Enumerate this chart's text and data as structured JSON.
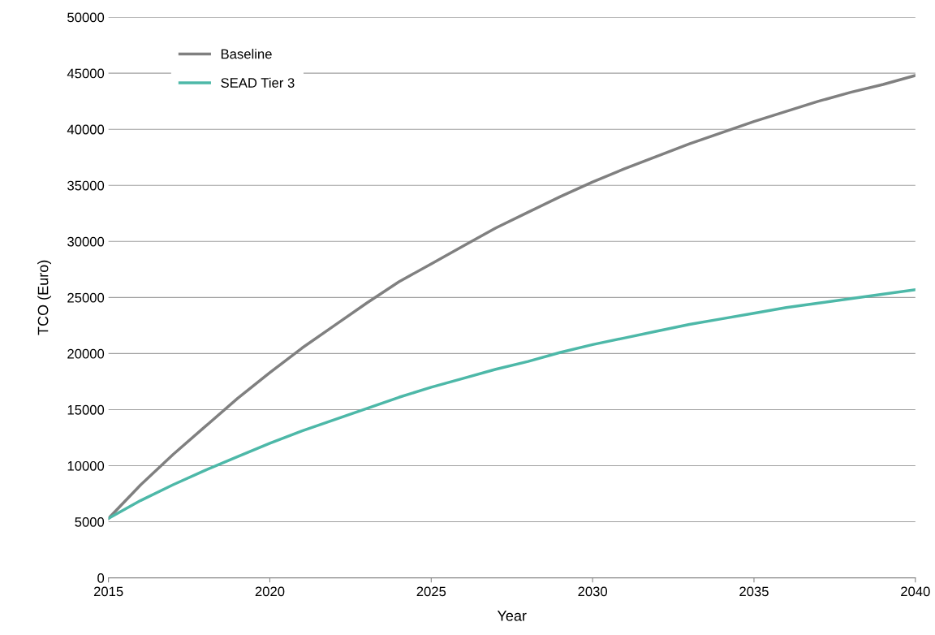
{
  "chart_data": {
    "type": "line",
    "xlabel": "Year",
    "ylabel": "TCO (Euro)",
    "x": [
      2015,
      2016,
      2017,
      2018,
      2019,
      2020,
      2021,
      2022,
      2023,
      2024,
      2025,
      2026,
      2027,
      2028,
      2029,
      2030,
      2031,
      2032,
      2033,
      2034,
      2035,
      2036,
      2037,
      2038,
      2039,
      2040
    ],
    "series": [
      {
        "name": "Baseline",
        "color": "#808080",
        "values": [
          5300,
          8300,
          11000,
          13500,
          16000,
          18300,
          20500,
          22500,
          24500,
          26400,
          28000,
          29600,
          31200,
          32600,
          34000,
          35300,
          36500,
          37600,
          38700,
          39700,
          40700,
          41600,
          42500,
          43300,
          44000,
          44800
        ]
      },
      {
        "name": "SEAD Tier 3",
        "color": "#4db8a8",
        "values": [
          5300,
          6900,
          8300,
          9600,
          10800,
          12000,
          13100,
          14100,
          15100,
          16100,
          17000,
          17800,
          18600,
          19300,
          20100,
          20800,
          21400,
          22000,
          22600,
          23100,
          23600,
          24100,
          24500,
          24900,
          25300,
          25700
        ]
      }
    ],
    "xlim": [
      2015,
      2040
    ],
    "xticks": [
      2015,
      2020,
      2025,
      2030,
      2035,
      2040
    ],
    "ylim": [
      0,
      50000
    ],
    "yticks": [
      0,
      5000,
      10000,
      15000,
      20000,
      25000,
      30000,
      35000,
      40000,
      45000,
      50000
    ],
    "grid": "y",
    "legend": "top left",
    "marker": "none",
    "line_style": "solid"
  }
}
